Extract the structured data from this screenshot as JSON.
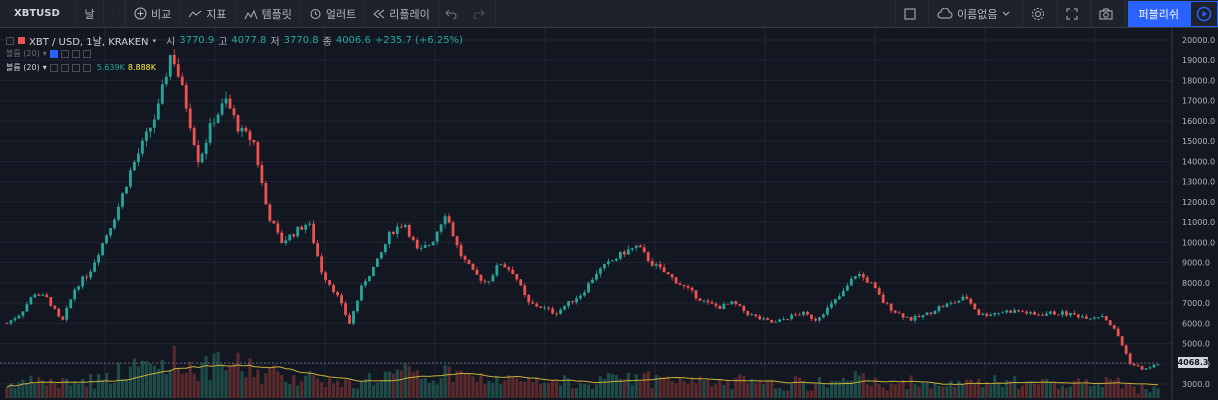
{
  "toolbar": {
    "symbol": "XBTUSD",
    "interval": "날",
    "compare": "비교",
    "indicators": "지표",
    "templates": "템플릿",
    "alerts": "얼러트",
    "replay": "리플레이",
    "layout_name": "이름없음",
    "publish": "퍼블리쉬"
  },
  "legend": {
    "title": "XBT / USD, 1날, KRAKEN",
    "open_label": "시",
    "open": "3770.9",
    "high_label": "고",
    "high": "4077.8",
    "low_label": "저",
    "low": "3770.8",
    "close_label": "종",
    "close": "4006.6",
    "change": "+235.7 (+6.25%)",
    "vol1_label": "볼륨 (20)",
    "vol2_label": "볼륨 (20)",
    "vol2_value1": "5.639K",
    "vol2_value2": "8.888K"
  },
  "colors": {
    "up": "#26a69a",
    "down": "#ef5350",
    "accent": "#2962ff",
    "ma": "#c9b13a"
  },
  "price_axis": {
    "ticks": [
      "20000.0",
      "19000.0",
      "18000.0",
      "17000.0",
      "16000.0",
      "15000.0",
      "14000.0",
      "13000.0",
      "12000.0",
      "11000.0",
      "10000.0",
      "9000.0",
      "8000.0",
      "7000.0",
      "6000.0",
      "5000.0",
      "4000.0",
      "3000.0"
    ],
    "last_price": "4068.3"
  },
  "chart_data": {
    "type": "candlestick",
    "symbol": "XBT / USD",
    "interval": "1날",
    "exchange": "KRAKEN",
    "ylim": [
      3000,
      20000
    ],
    "price_path": [
      6000,
      6500,
      7500,
      7200,
      6000,
      7800,
      8500,
      10000,
      11500,
      13500,
      15000,
      16500,
      19500,
      17000,
      14000,
      16000,
      17000,
      15500,
      15000,
      11500,
      10000,
      10500,
      11000,
      8500,
      7500,
      6000,
      8000,
      9000,
      10500,
      11000,
      9500,
      10000,
      11500,
      9500,
      8500,
      8000,
      9000,
      8500,
      7000,
      6800,
      6500,
      7000,
      7500,
      8500,
      9000,
      9500,
      9800,
      9000,
      8500,
      8000,
      7500,
      7000,
      6800,
      7000,
      6500,
      6200,
      6000,
      6300,
      6500,
      6200,
      6800,
      7500,
      8500,
      8000,
      7000,
      6500,
      6200,
      6400,
      6800,
      7000,
      7300,
      6400,
      6500,
      6600,
      6600,
      6400,
      6500,
      6500,
      6400,
      6300,
      6400,
      5500,
      4000,
      3700,
      4006
    ]
  }
}
